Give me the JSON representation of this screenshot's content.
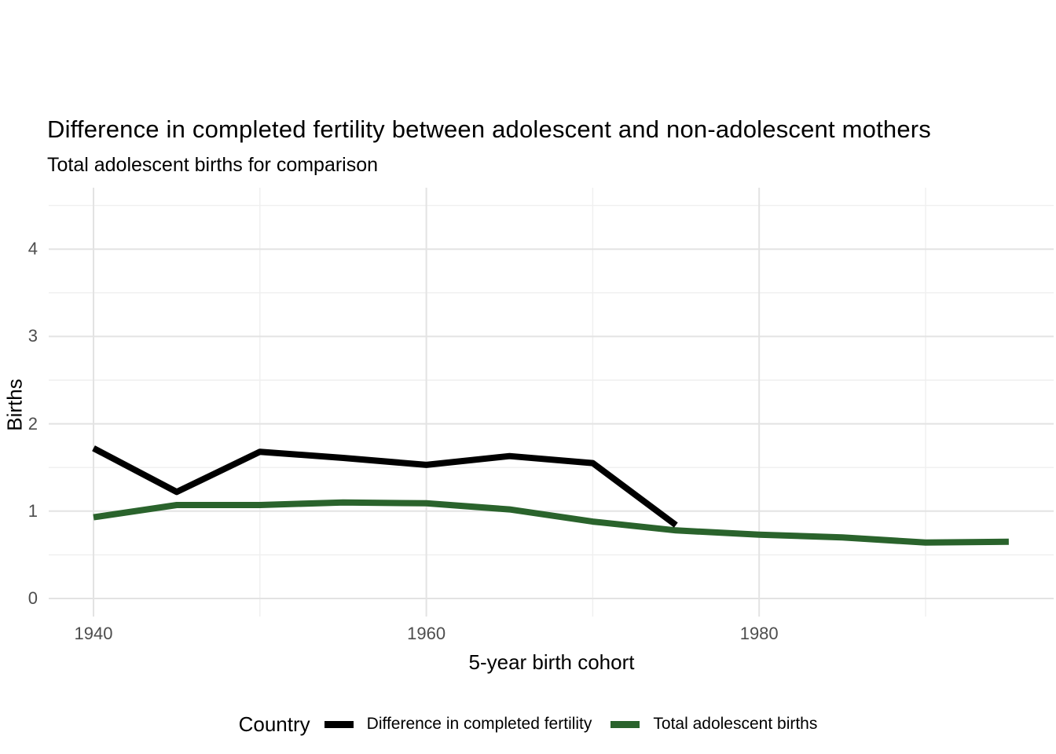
{
  "chart_data": {
    "type": "line",
    "title": "Difference in completed fertility between adolescent and non-adolescent mothers",
    "subtitle": "Total adolescent births for comparison",
    "xlabel": "5-year birth cohort",
    "ylabel": "Births",
    "legend_title": "Country",
    "legend_position": "bottom",
    "grid": true,
    "x_ticks": [
      1940,
      1960,
      1980
    ],
    "x_minor_gridlines": [
      1950,
      1970,
      1990
    ],
    "y_ticks": [
      0,
      1,
      2,
      3,
      4
    ],
    "y_minor_gridlines": [
      0.5,
      1.5,
      2.5,
      3.5,
      4.5
    ],
    "xlim": [
      1937.3,
      1997.7
    ],
    "ylim": [
      -0.21,
      4.7
    ],
    "series": [
      {
        "name": "Difference in completed fertility",
        "color": "#000000",
        "x": [
          1940,
          1945,
          1950,
          1955,
          1960,
          1965,
          1970,
          1975
        ],
        "values": [
          1.72,
          1.22,
          1.68,
          1.61,
          1.53,
          1.63,
          1.55,
          0.84
        ]
      },
      {
        "name": "Total adolescent births",
        "color": "#2a632c",
        "x": [
          1940,
          1945,
          1950,
          1955,
          1960,
          1965,
          1970,
          1975,
          1980,
          1985,
          1990,
          1995
        ],
        "values": [
          0.93,
          1.07,
          1.07,
          1.1,
          1.09,
          1.02,
          0.88,
          0.78,
          0.73,
          0.7,
          0.64,
          0.65
        ]
      }
    ],
    "colors": {
      "background": "#ffffff",
      "grid_major": "#e3e3e3",
      "grid_minor": "#efefef",
      "tick_text": "#4d4d4d",
      "text": "#000000"
    }
  }
}
